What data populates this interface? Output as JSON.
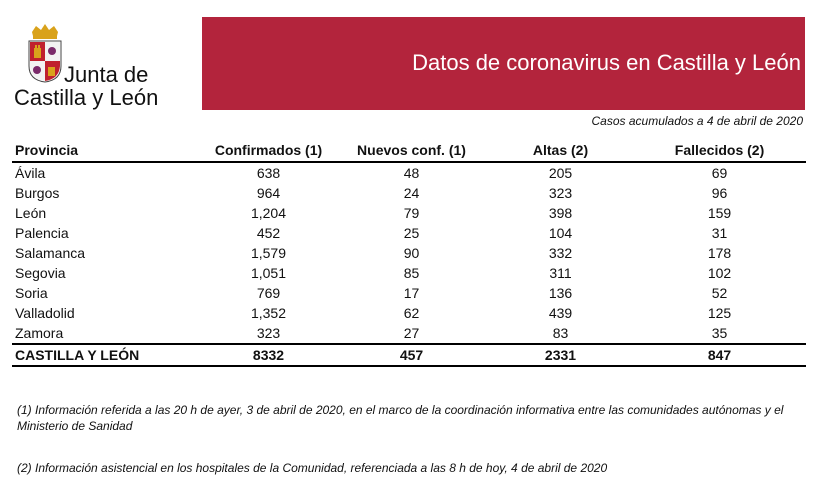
{
  "logo": {
    "line1": "Junta de",
    "line2": "Castilla y León"
  },
  "banner": {
    "title": "Datos de coronavirus en Castilla y León",
    "color": "#b3243c"
  },
  "subtitle": "Casos acumulados a 4 de abril de 2020",
  "table": {
    "headers": [
      "Provincia",
      "Confirmados (1)",
      "Nuevos conf. (1)",
      "Altas (2)",
      "Fallecidos (2)"
    ],
    "rows": [
      [
        "Ávila",
        "638",
        "48",
        "205",
        "69"
      ],
      [
        "Burgos",
        "964",
        "24",
        "323",
        "96"
      ],
      [
        "León",
        "1,204",
        "79",
        "398",
        "159"
      ],
      [
        "Palencia",
        "452",
        "25",
        "104",
        "31"
      ],
      [
        "Salamanca",
        "1,579",
        "90",
        "332",
        "178"
      ],
      [
        "Segovia",
        "1,051",
        "85",
        "311",
        "102"
      ],
      [
        "Soria",
        "769",
        "17",
        "136",
        "52"
      ],
      [
        "Valladolid",
        "1,352",
        "62",
        "439",
        "125"
      ],
      [
        "Zamora",
        "323",
        "27",
        "83",
        "35"
      ]
    ],
    "total": [
      "CASTILLA Y LEÓN",
      "8332",
      "457",
      "2331",
      "847"
    ]
  },
  "notes": {
    "note1": "(1) Información referida a las 20 h de ayer, 3 de abril de 2020, en el marco de la coordinación informativa entre las comunidades autónomas y el Ministerio de Sanidad",
    "note2": "(2) Información asistencial en los hospitales de la Comunidad, referenciada a las 8 h de hoy, 4 de abril de 2020"
  }
}
